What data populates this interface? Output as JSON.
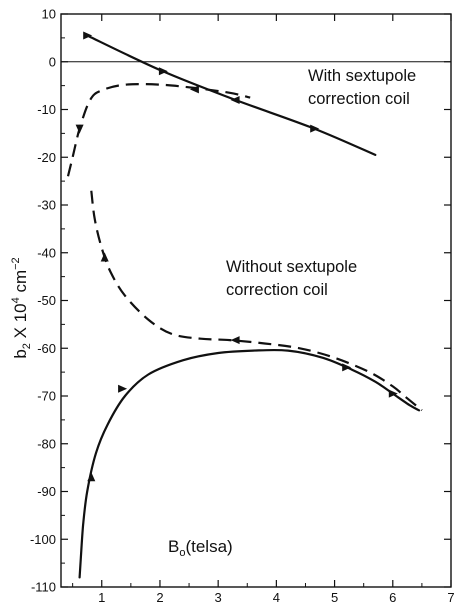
{
  "chart_data": {
    "type": "line",
    "title": "",
    "xlabel": {
      "main": "B",
      "sub": "o",
      "rest": "(telsa)"
    },
    "ylabel": {
      "b": "b",
      "b_sub": "2",
      "mid": " X 10",
      "sup1": "4",
      "unit": " cm",
      "sup2": "−2"
    },
    "xlim": [
      0.3,
      7
    ],
    "ylim": [
      -110,
      10
    ],
    "x_ticks": [
      "1",
      "2",
      "3",
      "4",
      "5",
      "6",
      "7"
    ],
    "x_tick_values": [
      1,
      2,
      3,
      4,
      5,
      6,
      7
    ],
    "y_ticks": [
      "10",
      "0",
      "-10",
      "-20",
      "-30",
      "-40",
      "-50",
      "-60",
      "-70",
      "-80",
      "-90",
      "-100",
      "-110"
    ],
    "y_tick_values": [
      10,
      0,
      -10,
      -20,
      -30,
      -40,
      -50,
      -60,
      -70,
      -80,
      -90,
      -100,
      -110
    ],
    "zero_line": true,
    "annotations": [
      {
        "line1": "With sextupole",
        "line2": "correction coil"
      },
      {
        "line1": "Without sextupole",
        "line2": "correction coil"
      }
    ],
    "series": [
      {
        "style": "solid",
        "x": [
          0.75,
          2.05,
          3.3,
          4.65,
          5.7
        ],
        "y": [
          5.5,
          -2,
          -8,
          -14,
          -19.5
        ],
        "markers": [
          [
            0.75,
            5.5,
            "right"
          ],
          [
            2.05,
            -2,
            "right"
          ],
          [
            3.3,
            -8,
            "left"
          ],
          [
            4.65,
            -14,
            "right"
          ]
        ]
      },
      {
        "style": "dashed",
        "x": [
          0.42,
          0.5,
          0.62,
          0.8,
          1.0,
          1.4,
          2.0,
          2.6,
          3.2,
          3.55
        ],
        "y": [
          -24,
          -20,
          -14,
          -8,
          -6,
          -4.8,
          -4.8,
          -5.5,
          -6.5,
          -7.5
        ],
        "markers": [
          [
            0.62,
            -14,
            "down"
          ],
          [
            2.6,
            -5.8,
            "left"
          ]
        ]
      },
      {
        "style": "dashed",
        "x": [
          0.82,
          0.88,
          1.0,
          1.15,
          1.4,
          1.8,
          2.2,
          2.7,
          3.2,
          3.8,
          4.4,
          5.0,
          5.6,
          6.0,
          6.2,
          6.5
        ],
        "y": [
          -27,
          -33,
          -39,
          -44,
          -49,
          -54,
          -57,
          -58,
          -58.3,
          -59,
          -60,
          -62,
          -65,
          -68,
          -70,
          -73
        ],
        "markers": [
          [
            1.05,
            -41,
            "up"
          ],
          [
            3.3,
            -58.3,
            "left"
          ]
        ]
      },
      {
        "style": "solid",
        "x": [
          0.62,
          0.64,
          0.68,
          0.75,
          0.9,
          1.1,
          1.4,
          1.8,
          2.4,
          3.0,
          3.6,
          4.2,
          4.8,
          5.3,
          5.7,
          6.0,
          6.3,
          6.45
        ],
        "y": [
          -108,
          -104,
          -97,
          -90,
          -82,
          -76,
          -70,
          -65.5,
          -62.5,
          -61,
          -60.5,
          -60.5,
          -62,
          -64.5,
          -67,
          -69.5,
          -72,
          -73
        ],
        "markers": [
          [
            0.82,
            -87,
            "up"
          ],
          [
            1.35,
            -68.5,
            "right"
          ],
          [
            5.2,
            -64,
            "right"
          ],
          [
            6.0,
            -69.5,
            "right"
          ]
        ]
      }
    ]
  }
}
